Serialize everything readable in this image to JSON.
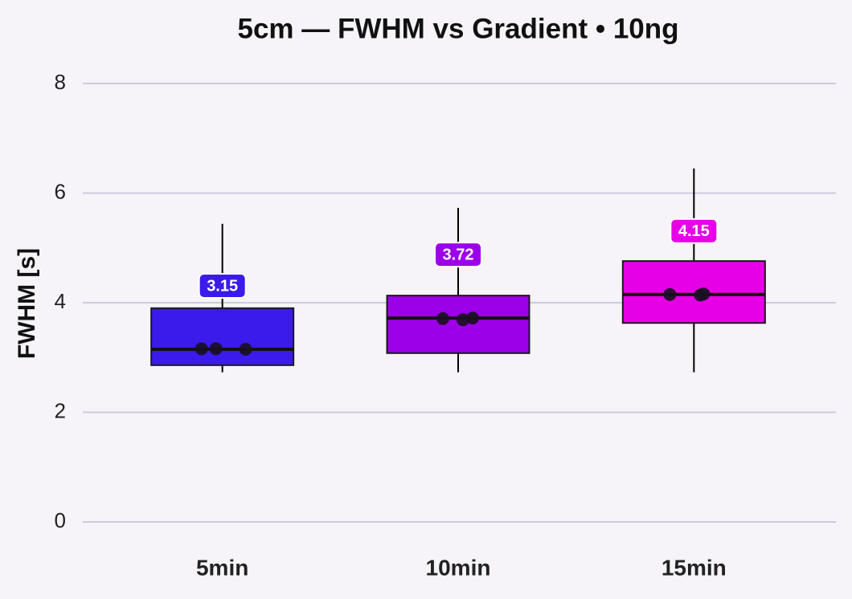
{
  "chart_data": {
    "type": "box",
    "title": "5cm — FWHM vs Gradient • 10ng",
    "y_label": "FWHM [s]",
    "categories": [
      "5min",
      "10min",
      "15min"
    ],
    "colors": [
      "#3b1aec",
      "#9c00e8",
      "#e600e6"
    ],
    "boxes": [
      {
        "whisker_low": 2.73,
        "q1": 2.86,
        "median": 3.15,
        "q3": 3.9,
        "whisker_high": 5.44,
        "points": [
          3.16,
          3.16,
          3.15
        ]
      },
      {
        "whisker_low": 2.73,
        "q1": 3.08,
        "median": 3.72,
        "q3": 4.13,
        "whisker_high": 5.73,
        "points": [
          3.71,
          3.69,
          3.72
        ]
      },
      {
        "whisker_low": 2.73,
        "q1": 3.63,
        "median": 4.15,
        "q3": 4.76,
        "whisker_high": 6.45,
        "points": [
          4.15,
          4.14,
          4.16
        ]
      }
    ],
    "ylim": [
      0,
      8
    ],
    "yticks": [
      0,
      2,
      4,
      6,
      8
    ],
    "grid": true
  }
}
